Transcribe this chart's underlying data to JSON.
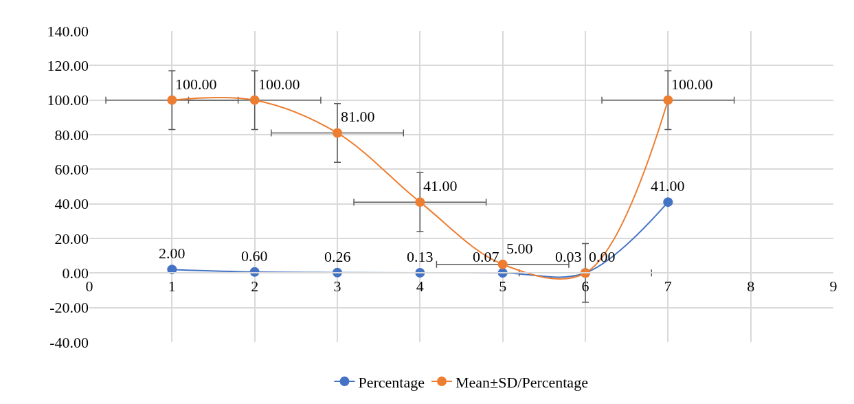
{
  "chart_data": {
    "type": "line",
    "x": [
      1,
      2,
      3,
      4,
      5,
      6,
      7
    ],
    "series": [
      {
        "name": "Percentage",
        "color": "#4472c4",
        "values": [
          2,
          0.6,
          0.26,
          0.13,
          0.07,
          0.03,
          41
        ],
        "value_labels": [
          "2.00",
          "0.60",
          "0.26",
          "0.13",
          "0.07",
          "0.03",
          "41.00"
        ]
      },
      {
        "name": "Mean±SD/Percentage",
        "color": "#ed7d31",
        "values": [
          100,
          100,
          81,
          41,
          5,
          0,
          100
        ],
        "value_labels": [
          "100.00",
          "100.00",
          "81.00",
          "41.00",
          "5.00",
          "0.00",
          "100.00"
        ],
        "errors": [
          17,
          17,
          17,
          17,
          null,
          17,
          17
        ],
        "xerrors": [
          0.8,
          0.8,
          0.8,
          0.8,
          0.8,
          0.8,
          0.8
        ]
      }
    ],
    "xlim": [
      0,
      9
    ],
    "xticks": [
      0,
      1,
      2,
      3,
      4,
      5,
      6,
      7,
      8,
      9
    ],
    "ylim": [
      -40,
      140
    ],
    "yticks": [
      {
        "value": -40,
        "label": "-40.00"
      },
      {
        "value": -20,
        "label": "-20.00"
      },
      {
        "value": 0,
        "label": "0.00"
      },
      {
        "value": 20,
        "label": "20.00"
      },
      {
        "value": 40,
        "label": "40.00"
      },
      {
        "value": 60,
        "label": "60.00"
      },
      {
        "value": 80,
        "label": "80.00"
      },
      {
        "value": 100,
        "label": "100.00"
      },
      {
        "value": 120,
        "label": "120.00"
      },
      {
        "value": 140,
        "label": "140.00"
      }
    ],
    "grid": true,
    "legend": "bottom",
    "marker": "circle",
    "line_style": "solid"
  }
}
